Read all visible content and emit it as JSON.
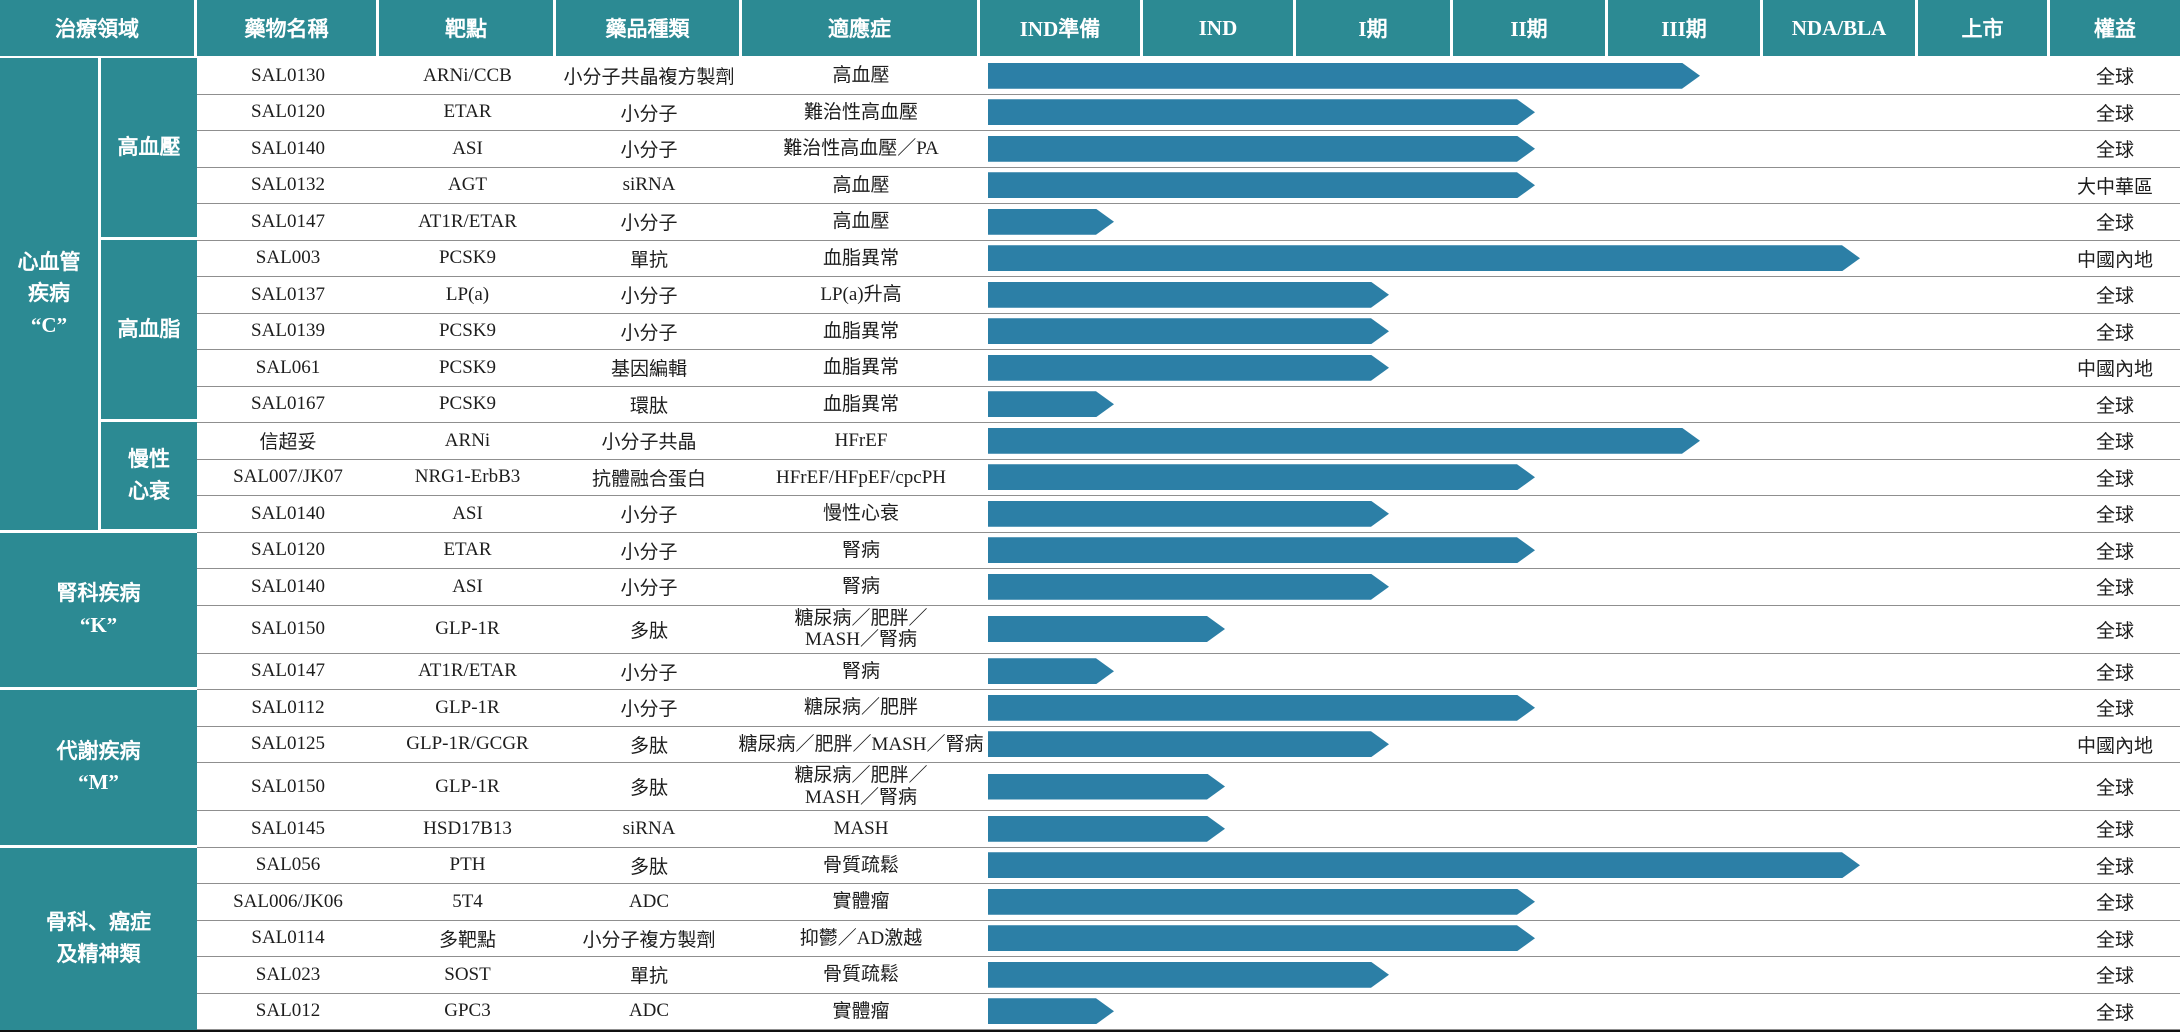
{
  "colors": {
    "teal": "#2C8A93",
    "bar_blue": "#2C7FA6",
    "row_rule_gray": "#8f8f8f",
    "bottom_bar_black": "#101010"
  },
  "table": {
    "header": {
      "area": "治療領域",
      "drug": "藥物名稱",
      "target": "靶點",
      "type": "藥品種類",
      "indication": "適應症",
      "phases": [
        "IND準備",
        "IND",
        "I期",
        "II期",
        "III期",
        "NDA/BLA",
        "上市"
      ],
      "rights": "權益"
    },
    "groups": [
      {
        "label_lines": [
          "心血管",
          "疾病",
          "“C”"
        ],
        "sub": [
          {
            "label_lines": [
              "高血壓"
            ],
            "rows": [
              {
                "drug": "SAL0130",
                "target": "ARNi/CCB",
                "type": "小分子共晶複方製劑",
                "indication_lines": [
                  "高血壓"
                ],
                "phase": "III期",
                "tip": 720,
                "rights": "全球"
              },
              {
                "drug": "SAL0120",
                "target": "ETAR",
                "type": "小分子",
                "indication_lines": [
                  "難治性高血壓"
                ],
                "phase": "II期",
                "tip": 555,
                "rights": "全球"
              },
              {
                "drug": "SAL0140",
                "target": "ASI",
                "type": "小分子",
                "indication_lines": [
                  "難治性高血壓／PA"
                ],
                "phase": "II期",
                "tip": 555,
                "rights": "全球"
              },
              {
                "drug": "SAL0132",
                "target": "AGT",
                "type": "siRNA",
                "indication_lines": [
                  "高血壓"
                ],
                "phase": "II期",
                "tip": 555,
                "rights": "大中華區"
              },
              {
                "drug": "SAL0147",
                "target": "AT1R/ETAR",
                "type": "小分子",
                "indication_lines": [
                  "高血壓"
                ],
                "phase": "IND準備",
                "tip": 134,
                "rights": "全球"
              }
            ]
          },
          {
            "label_lines": [
              "高血脂"
            ],
            "rows": [
              {
                "drug": "SAL003",
                "target": "PCSK9",
                "type": "單抗",
                "indication_lines": [
                  "血脂異常"
                ],
                "phase": "NDA/BLA",
                "tip": 880,
                "rights": "中國內地"
              },
              {
                "drug": "SAL0137",
                "target": "LP(a)",
                "type": "小分子",
                "indication_lines": [
                  "LP(a)升高"
                ],
                "phase": "I期",
                "tip": 409,
                "rights": "全球"
              },
              {
                "drug": "SAL0139",
                "target": "PCSK9",
                "type": "小分子",
                "indication_lines": [
                  "血脂異常"
                ],
                "phase": "I期",
                "tip": 409,
                "rights": "全球"
              },
              {
                "drug": "SAL061",
                "target": "PCSK9",
                "type": "基因編輯",
                "indication_lines": [
                  "血脂異常"
                ],
                "phase": "I期",
                "tip": 409,
                "rights": "中國內地"
              },
              {
                "drug": "SAL0167",
                "target": "PCSK9",
                "type": "環肽",
                "indication_lines": [
                  "血脂異常"
                ],
                "phase": "IND準備",
                "tip": 134,
                "rights": "全球"
              }
            ]
          },
          {
            "label_lines": [
              "慢性",
              "心衰"
            ],
            "rows": [
              {
                "drug": "信超妥",
                "target": "ARNi",
                "type": "小分子共晶",
                "indication_lines": [
                  "HFrEF"
                ],
                "phase": "III期",
                "tip": 720,
                "rights": "全球"
              },
              {
                "drug": "SAL007/JK07",
                "target": "NRG1-ErbB3",
                "type": "抗體融合蛋白",
                "indication_lines": [
                  "HFrEF/HFpEF/cpcPH"
                ],
                "phase": "II期",
                "tip": 555,
                "rights": "全球"
              },
              {
                "drug": "SAL0140",
                "target": "ASI",
                "type": "小分子",
                "indication_lines": [
                  "慢性心衰"
                ],
                "phase": "I期",
                "tip": 409,
                "rights": "全球"
              }
            ]
          }
        ]
      },
      {
        "label_lines": [
          "腎科疾病",
          "“K”"
        ],
        "sub": [
          {
            "label_lines": [],
            "rows": [
              {
                "drug": "SAL0120",
                "target": "ETAR",
                "type": "小分子",
                "indication_lines": [
                  "腎病"
                ],
                "phase": "II期",
                "tip": 555,
                "rights": "全球"
              },
              {
                "drug": "SAL0140",
                "target": "ASI",
                "type": "小分子",
                "indication_lines": [
                  "腎病"
                ],
                "phase": "I期",
                "tip": 409,
                "rights": "全球"
              },
              {
                "drug": "SAL0150",
                "target": "GLP-1R",
                "type": "多肽",
                "indication_lines": [
                  "糖尿病／肥胖／",
                  "MASH／腎病"
                ],
                "phase": "IND",
                "tip": 245,
                "rights": "全球"
              },
              {
                "drug": "SAL0147",
                "target": "AT1R/ETAR",
                "type": "小分子",
                "indication_lines": [
                  "腎病"
                ],
                "phase": "IND準備",
                "tip": 134,
                "rights": "全球"
              }
            ]
          }
        ]
      },
      {
        "label_lines": [
          "代謝疾病",
          "“M”"
        ],
        "sub": [
          {
            "label_lines": [],
            "rows": [
              {
                "drug": "SAL0112",
                "target": "GLP-1R",
                "type": "小分子",
                "indication_lines": [
                  "糖尿病／肥胖"
                ],
                "phase": "II期",
                "tip": 555,
                "rights": "全球"
              },
              {
                "drug": "SAL0125",
                "target": "GLP-1R/GCGR",
                "type": "多肽",
                "indication_lines": [
                  "糖尿病／肥胖／MASH／腎病"
                ],
                "phase": "I期",
                "tip": 409,
                "rights": "中國內地"
              },
              {
                "drug": "SAL0150",
                "target": "GLP-1R",
                "type": "多肽",
                "indication_lines": [
                  "糖尿病／肥胖／",
                  "MASH／腎病"
                ],
                "phase": "IND",
                "tip": 245,
                "rights": "全球"
              },
              {
                "drug": "SAL0145",
                "target": "HSD17B13",
                "type": "siRNA",
                "indication_lines": [
                  "MASH"
                ],
                "phase": "IND",
                "tip": 245,
                "rights": "全球"
              }
            ]
          }
        ]
      },
      {
        "label_lines": [
          "骨科、癌症",
          "及精神類"
        ],
        "sub": [
          {
            "label_lines": [],
            "rows": [
              {
                "drug": "SAL056",
                "target": "PTH",
                "type": "多肽",
                "indication_lines": [
                  "骨質疏鬆"
                ],
                "phase": "NDA/BLA",
                "tip": 880,
                "rights": "全球"
              },
              {
                "drug": "SAL006/JK06",
                "target": "5T4",
                "type": "ADC",
                "indication_lines": [
                  "實體瘤"
                ],
                "phase": "II期",
                "tip": 555,
                "rights": "全球"
              },
              {
                "drug": "SAL0114",
                "target": "多靶點",
                "type": "小分子複方製劑",
                "indication_lines": [
                  "抑鬱／AD激越"
                ],
                "phase": "II期",
                "tip": 555,
                "rights": "全球"
              },
              {
                "drug": "SAL023",
                "target": "SOST",
                "type": "單抗",
                "indication_lines": [
                  "骨質疏鬆"
                ],
                "phase": "I期",
                "tip": 409,
                "rights": "全球"
              },
              {
                "drug": "SAL012",
                "target": "GPC3",
                "type": "ADC",
                "indication_lines": [
                  "實體瘤"
                ],
                "phase": "IND準備",
                "tip": 134,
                "rights": "全球"
              }
            ]
          }
        ]
      }
    ]
  },
  "chart_data": {
    "type": "bar",
    "title": "",
    "stages": [
      "IND準備",
      "IND",
      "I期",
      "II期",
      "III期",
      "NDA/BLA",
      "上市"
    ],
    "categories": [
      "SAL0130",
      "SAL0120",
      "SAL0140",
      "SAL0132",
      "SAL0147",
      "SAL003",
      "SAL0137",
      "SAL0139",
      "SAL061",
      "SAL0167",
      "信超妥",
      "SAL007/JK07",
      "SAL0140",
      "SAL0120",
      "SAL0140",
      "SAL0150",
      "SAL0147",
      "SAL0112",
      "SAL0125",
      "SAL0150",
      "SAL0145",
      "SAL056",
      "SAL006/JK06",
      "SAL0114",
      "SAL023",
      "SAL012"
    ],
    "values": [
      5,
      4,
      4,
      4,
      1,
      6,
      3,
      3,
      3,
      1,
      5,
      4,
      3,
      4,
      3,
      2,
      1,
      4,
      3,
      2,
      2,
      6,
      4,
      4,
      3,
      1
    ],
    "values_meaning": "current development stage, 1=IND準備 … 7=上市"
  }
}
